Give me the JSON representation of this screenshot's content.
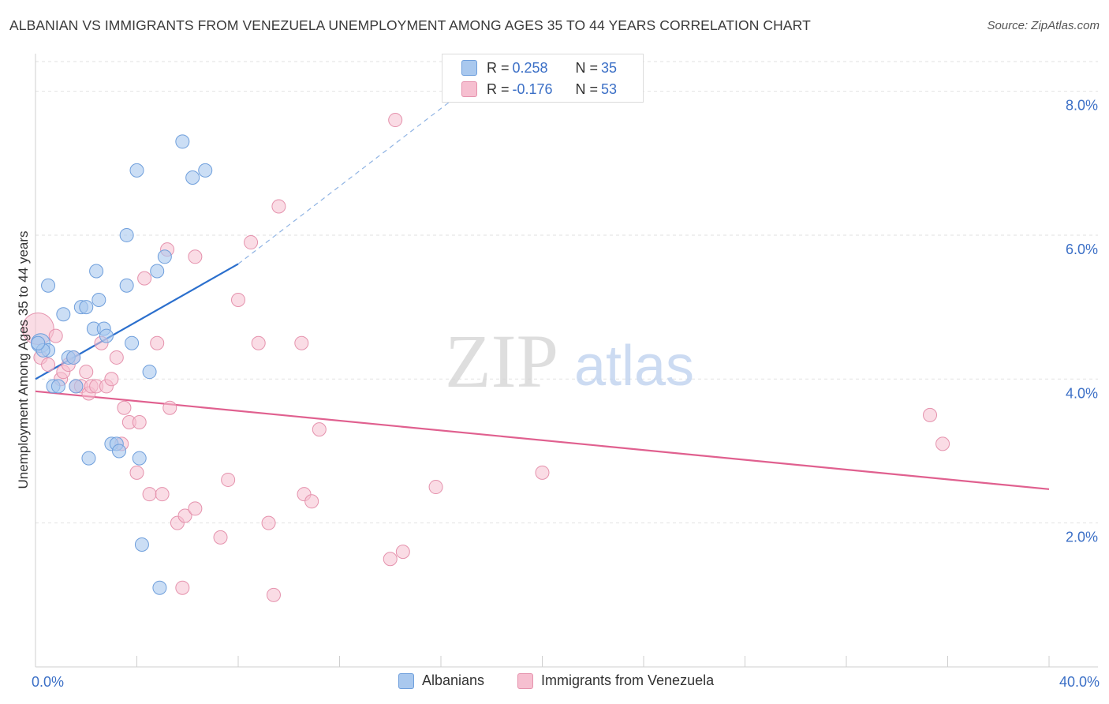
{
  "title": "ALBANIAN VS IMMIGRANTS FROM VENEZUELA UNEMPLOYMENT AMONG AGES 35 TO 44 YEARS CORRELATION CHART",
  "source": "Source: ZipAtlas.com",
  "watermark": {
    "zip": "ZIP",
    "atlas": "atlas"
  },
  "stats": {
    "rows": [
      {
        "r_label": "R = ",
        "r_value": "0.258",
        "n_label": "N = ",
        "n_value": "35"
      },
      {
        "r_label": "R = ",
        "r_value": "-0.176",
        "n_label": "N = ",
        "n_value": "53"
      }
    ]
  },
  "legend": {
    "albanians": "Albanians",
    "venezuela": "Immigrants from Venezuela"
  },
  "colors": {
    "blue_fill": "#a9c8ee",
    "blue_stroke": "#6f9fdc",
    "blue_line": "#2b6fcd",
    "pink_fill": "#f6bfd0",
    "pink_stroke": "#e592ad",
    "pink_line": "#e0608f",
    "axis_text": "#3b6fc6",
    "grid": "#e2e2e2"
  },
  "chart_data": {
    "type": "scatter",
    "title": "ALBANIAN VS IMMIGRANTS FROM VENEZUELA UNEMPLOYMENT AMONG AGES 35 TO 44 YEARS CORRELATION CHART",
    "xlabel": "",
    "ylabel": "Unemployment Among Ages 35 to 44 years",
    "xlim": [
      0,
      40
    ],
    "ylim": [
      0,
      8.5
    ],
    "x_tick_labels": [
      {
        "value": 0,
        "label": "0.0%"
      },
      {
        "value": 40,
        "label": "40.0%"
      }
    ],
    "y_tick_labels": [
      {
        "value": 2,
        "label": "2.0%"
      },
      {
        "value": 4,
        "label": "4.0%"
      },
      {
        "value": 6,
        "label": "6.0%"
      },
      {
        "value": 8,
        "label": "8.0%"
      }
    ],
    "series": [
      {
        "name": "Albanians",
        "R": 0.258,
        "N": 35,
        "points": [
          [
            0.2,
            4.5
          ],
          [
            0.5,
            4.4
          ],
          [
            0.5,
            5.3
          ],
          [
            0.7,
            3.9
          ],
          [
            0.9,
            3.9
          ],
          [
            1.1,
            4.9
          ],
          [
            1.3,
            4.3
          ],
          [
            1.5,
            4.3
          ],
          [
            1.6,
            3.9
          ],
          [
            1.8,
            5.0
          ],
          [
            2.0,
            5.0
          ],
          [
            2.1,
            2.9
          ],
          [
            2.3,
            4.7
          ],
          [
            2.4,
            5.5
          ],
          [
            2.5,
            5.1
          ],
          [
            2.7,
            4.7
          ],
          [
            2.8,
            4.6
          ],
          [
            3.0,
            3.1
          ],
          [
            3.2,
            3.1
          ],
          [
            3.3,
            3.0
          ],
          [
            3.6,
            6.0
          ],
          [
            3.6,
            5.3
          ],
          [
            3.8,
            4.5
          ],
          [
            4.0,
            6.9
          ],
          [
            4.1,
            2.9
          ],
          [
            4.2,
            1.7
          ],
          [
            4.5,
            4.1
          ],
          [
            4.8,
            5.5
          ],
          [
            4.9,
            1.1
          ],
          [
            5.1,
            5.7
          ],
          [
            5.8,
            7.3
          ],
          [
            6.2,
            6.8
          ],
          [
            6.7,
            6.9
          ],
          [
            0.3,
            4.4
          ],
          [
            0.1,
            4.5
          ]
        ],
        "trend": {
          "x": [
            0,
            8
          ],
          "y": [
            4.0,
            5.6
          ],
          "dashed_to": [
            18,
            8.3
          ]
        }
      },
      {
        "name": "Immigrants from Venezuela",
        "R": -0.176,
        "N": 53,
        "points": [
          [
            0.1,
            4.7
          ],
          [
            0.2,
            4.3
          ],
          [
            0.5,
            4.2
          ],
          [
            0.8,
            4.6
          ],
          [
            1.0,
            4.0
          ],
          [
            1.1,
            4.1
          ],
          [
            1.3,
            4.2
          ],
          [
            1.5,
            4.3
          ],
          [
            1.6,
            3.9
          ],
          [
            1.8,
            3.9
          ],
          [
            2.0,
            4.1
          ],
          [
            2.1,
            3.8
          ],
          [
            2.2,
            3.9
          ],
          [
            2.4,
            3.9
          ],
          [
            2.6,
            4.5
          ],
          [
            2.8,
            3.9
          ],
          [
            3.0,
            4.0
          ],
          [
            3.2,
            4.3
          ],
          [
            3.4,
            3.1
          ],
          [
            3.5,
            3.6
          ],
          [
            3.7,
            3.4
          ],
          [
            4.0,
            2.7
          ],
          [
            4.1,
            3.4
          ],
          [
            4.3,
            5.4
          ],
          [
            4.5,
            2.4
          ],
          [
            4.8,
            4.5
          ],
          [
            5.0,
            2.4
          ],
          [
            5.2,
            5.8
          ],
          [
            5.3,
            3.6
          ],
          [
            5.6,
            2.0
          ],
          [
            5.8,
            1.1
          ],
          [
            5.9,
            2.1
          ],
          [
            6.3,
            2.2
          ],
          [
            6.3,
            5.7
          ],
          [
            7.3,
            1.8
          ],
          [
            7.6,
            2.6
          ],
          [
            8.0,
            5.1
          ],
          [
            8.5,
            5.9
          ],
          [
            8.8,
            4.5
          ],
          [
            9.2,
            2.0
          ],
          [
            9.4,
            1.0
          ],
          [
            9.6,
            6.4
          ],
          [
            10.5,
            4.5
          ],
          [
            10.6,
            2.4
          ],
          [
            10.9,
            2.3
          ],
          [
            11.2,
            3.3
          ],
          [
            14.0,
            1.5
          ],
          [
            14.2,
            7.6
          ],
          [
            14.5,
            1.6
          ],
          [
            15.8,
            2.5
          ],
          [
            20.0,
            2.7
          ],
          [
            35.3,
            3.5
          ],
          [
            35.8,
            3.1
          ]
        ],
        "trend": {
          "x": [
            0,
            40
          ],
          "y": [
            3.83,
            2.47
          ]
        }
      }
    ],
    "grid": true,
    "legend_position": "bottom-center"
  }
}
